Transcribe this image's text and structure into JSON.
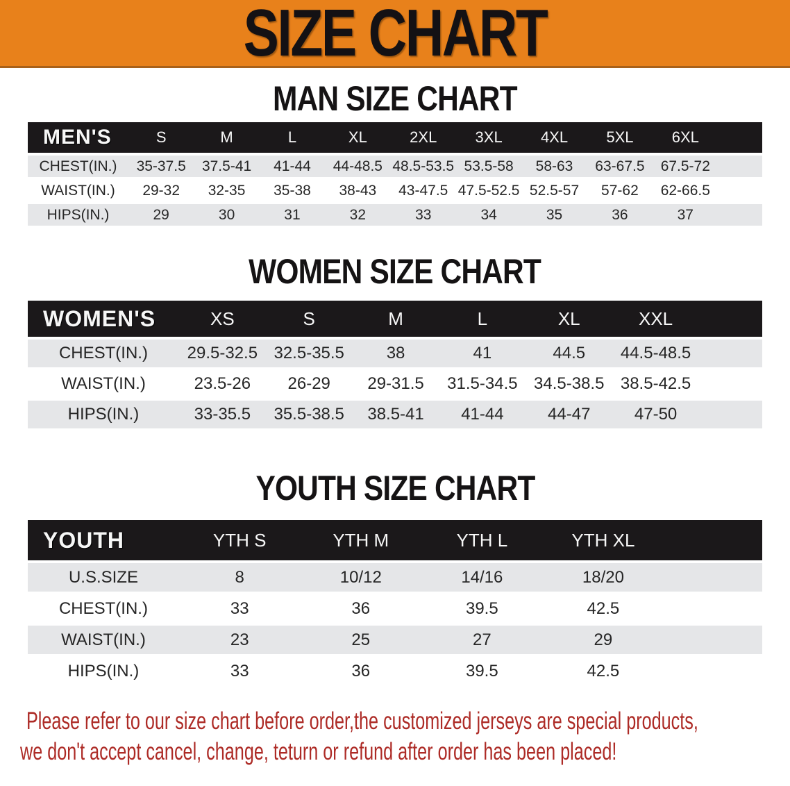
{
  "banner": {
    "title": "SIZE CHART",
    "bg_color": "#E8811B",
    "text_color": "#141114"
  },
  "sections": [
    {
      "heading": "MAN SIZE CHART",
      "label": "MEN'S",
      "columns": [
        "S",
        "M",
        "L",
        "XL",
        "2XL",
        "3XL",
        "4XL",
        "5XL",
        "6XL"
      ],
      "rows": [
        {
          "label": "CHEST(IN.)",
          "values": [
            "35-37.5",
            "37.5-41",
            "41-44",
            "44-48.5",
            "48.5-53.5",
            "53.5-58",
            "58-63",
            "63-67.5",
            "67.5-72"
          ]
        },
        {
          "label": "WAIST(IN.)",
          "values": [
            "29-32",
            "32-35",
            "35-38",
            "38-43",
            "43-47.5",
            "47.5-52.5",
            "52.5-57",
            "57-62",
            "62-66.5"
          ]
        },
        {
          "label": "HIPS(IN.)",
          "values": [
            "29",
            "30",
            "31",
            "32",
            "33",
            "34",
            "35",
            "36",
            "37"
          ]
        }
      ]
    },
    {
      "heading": "WOMEN SIZE CHART",
      "label": "WOMEN'S",
      "columns": [
        "XS",
        "S",
        "M",
        "L",
        "XL",
        "XXL"
      ],
      "rows": [
        {
          "label": "CHEST(IN.)",
          "values": [
            "29.5-32.5",
            "32.5-35.5",
            "38",
            "41",
            "44.5",
            "44.5-48.5"
          ]
        },
        {
          "label": "WAIST(IN.)",
          "values": [
            "23.5-26",
            "26-29",
            "29-31.5",
            "31.5-34.5",
            "34.5-38.5",
            "38.5-42.5"
          ]
        },
        {
          "label": "HIPS(IN.)",
          "values": [
            "33-35.5",
            "35.5-38.5",
            "38.5-41",
            "41-44",
            "44-47",
            "47-50"
          ]
        }
      ]
    },
    {
      "heading": "YOUTH SIZE CHART",
      "label": "YOUTH",
      "columns": [
        "YTH S",
        "YTH M",
        "YTH L",
        "YTH XL"
      ],
      "rows": [
        {
          "label": "U.S.SIZE",
          "values": [
            "8",
            "10/12",
            "14/16",
            "18/20"
          ]
        },
        {
          "label": "CHEST(IN.)",
          "values": [
            "33",
            "36",
            "39.5",
            "42.5"
          ]
        },
        {
          "label": "WAIST(IN.)",
          "values": [
            "23",
            "25",
            "27",
            "29"
          ]
        },
        {
          "label": "HIPS(IN.)",
          "values": [
            "33",
            "36",
            "39.5",
            "42.5"
          ]
        }
      ]
    }
  ],
  "disclaimer": {
    "line1": "Please refer to our size chart before order,the customized jerseys are special products,",
    "line2": "we don't accept cancel, change, teturn or refund after order has been placed!",
    "color": "#AD2B26"
  }
}
